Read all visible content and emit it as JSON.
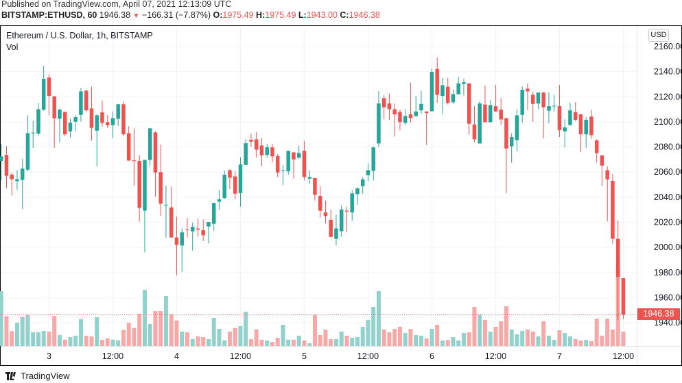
{
  "published": "Published on TradingView.com, April 07, 2021 12:13:09 UTC",
  "symbol_line": {
    "symbol": "BITSTAMP:ETHUSD, 60",
    "last": "1946.38",
    "change": "−166.31 (−7.87%)",
    "o_label": "O:",
    "o": "1975.49",
    "h_label": "H:",
    "h": "1975.49",
    "l_label": "L:",
    "l": "1943.00",
    "c_label": "C:",
    "c": "1946.38",
    "direction_icon": "triangle-down-icon"
  },
  "legend": {
    "title": "Ethereum / U.S. Dollar, 1h, BITSTAMP",
    "vol": "Vol"
  },
  "currency_button": "USD",
  "last_price_tag": "1946.38",
  "brand": "TradingView",
  "colors": {
    "up": "#26a69a",
    "down": "#ef5350",
    "vol_up": "#92d2cc",
    "vol_down": "#f7a9a7",
    "grid": "#f0f3fa"
  },
  "chart_data": {
    "type": "candlestick",
    "interval": "1h",
    "y_ticks": [
      "2160.00",
      "2140.00",
      "2120.00",
      "2100.00",
      "2080.00",
      "2060.00",
      "2040.00",
      "2020.00",
      "2000.00",
      "1980.00",
      "1960.00",
      "1940.00"
    ],
    "x_ticks": [
      {
        "label": "3",
        "time": "04-03 00:00"
      },
      {
        "label": "12:00",
        "time": "04-03 12:00"
      },
      {
        "label": "4",
        "time": "04-04 00:00"
      },
      {
        "label": "12:00",
        "time": "04-04 12:00"
      },
      {
        "label": "5",
        "time": "04-05 00:00"
      },
      {
        "label": "12:00",
        "time": "04-05 12:00"
      },
      {
        "label": "6",
        "time": "04-06 00:00"
      },
      {
        "label": "12:00",
        "time": "04-06 12:00"
      },
      {
        "label": "7",
        "time": "04-07 00:00"
      },
      {
        "label": "12:00",
        "time": "04-07 12:00"
      }
    ],
    "last_price": 1946.38,
    "columns": [
      "time",
      "open",
      "high",
      "low",
      "close",
      "volume_relative"
    ],
    "candles": [
      [
        "04-02 15:00",
        2068.8,
        2082.5,
        2053.4,
        2072.5,
        240
      ],
      [
        "04-02 16:00",
        2073.7,
        2080.7,
        2047,
        2057,
        130
      ],
      [
        "04-02 17:00",
        2058,
        2059.2,
        2041.5,
        2054.3,
        65
      ],
      [
        "04-02 18:00",
        2052.8,
        2061.5,
        2046,
        2054.3,
        102
      ],
      [
        "04-02 19:00",
        2053.7,
        2070.6,
        2030.6,
        2062.8,
        128
      ],
      [
        "04-02 20:00",
        2061.9,
        2105.2,
        2060.6,
        2091,
        137
      ],
      [
        "04-02 21:00",
        2091,
        2101,
        2079.2,
        2091.4,
        60
      ],
      [
        "04-02 22:00",
        2090.7,
        2115.2,
        2088.9,
        2110.1,
        60
      ],
      [
        "04-02 23:00",
        2109.8,
        2144.7,
        2108.9,
        2134.3,
        66
      ],
      [
        "04-03 00:00",
        2135.3,
        2138,
        2105.2,
        2120.7,
        63
      ],
      [
        "04-03 01:00",
        2120.3,
        2120.7,
        2079.2,
        2102.9,
        132
      ],
      [
        "04-03 02:00",
        2102.5,
        2110.7,
        2083.8,
        2109.8,
        48
      ],
      [
        "04-03 03:00",
        2108,
        2108,
        2088.9,
        2090.1,
        28
      ],
      [
        "04-03 04:00",
        2092.5,
        2102.5,
        2087.6,
        2099.4,
        39
      ],
      [
        "04-03 05:00",
        2100.1,
        2105.2,
        2092.5,
        2103.8,
        45
      ],
      [
        "04-03 06:00",
        2105.6,
        2127.1,
        2100.3,
        2124.3,
        118
      ],
      [
        "04-03 07:00",
        2124.9,
        2125.6,
        2108,
        2109.2,
        45
      ],
      [
        "04-03 08:00",
        2110.7,
        2128,
        2085.2,
        2095.2,
        42
      ],
      [
        "04-03 09:00",
        2093,
        2106.1,
        2064.6,
        2105.2,
        126
      ],
      [
        "04-03 10:00",
        2107.6,
        2117,
        2096.1,
        2099.2,
        27
      ],
      [
        "04-03 11:00",
        2099.8,
        2105.2,
        2095.2,
        2097.4,
        33
      ],
      [
        "04-03 12:00",
        2097.4,
        2108.3,
        2087,
        2103,
        28
      ],
      [
        "04-03 13:00",
        2102.5,
        2114.3,
        2096.7,
        2114,
        25
      ],
      [
        "04-03 14:00",
        2114,
        2116.2,
        2088.9,
        2090.1,
        70
      ],
      [
        "04-03 15:00",
        2091,
        2096.5,
        2068.8,
        2069.2,
        102
      ],
      [
        "04-03 16:00",
        2069.4,
        2094.7,
        2049.2,
        2068.7,
        79
      ],
      [
        "04-03 17:00",
        2068.8,
        2073.4,
        2020.6,
        2031.5,
        141
      ],
      [
        "04-03 18:00",
        2029.3,
        2069.7,
        1996,
        2069.7,
        246
      ],
      [
        "04-03 19:00",
        2069.7,
        2094.9,
        2065.2,
        2094.9,
        96
      ],
      [
        "04-03 20:00",
        2091.6,
        2092.5,
        2040.3,
        2059.7,
        153
      ],
      [
        "04-03 21:00",
        2060,
        2081.9,
        2025.2,
        2034.8,
        153
      ],
      [
        "04-03 22:00",
        2033.7,
        2049.2,
        2007.5,
        2034,
        219
      ],
      [
        "04-03 23:00",
        2031.9,
        2048.3,
        2007.5,
        2007.9,
        139
      ],
      [
        "04-04 00:00",
        2007.9,
        2024.8,
        1977.8,
        2002,
        112
      ],
      [
        "04-04 01:00",
        2001.5,
        2015.1,
        1980.6,
        2012,
        63
      ],
      [
        "04-04 02:00",
        2014.2,
        2023.7,
        2007.9,
        2013.7,
        60
      ],
      [
        "04-04 03:00",
        2012.8,
        2019.7,
        1997.5,
        2016.4,
        30
      ],
      [
        "04-04 04:00",
        2015.1,
        2023,
        2008.4,
        2014.2,
        42
      ],
      [
        "04-04 05:00",
        2013.7,
        2022.4,
        2005.1,
        2009.7,
        39
      ],
      [
        "04-04 06:00",
        2016.6,
        2020.2,
        2003.3,
        2020.2,
        30
      ],
      [
        "04-04 07:00",
        2018.8,
        2035.5,
        2013.3,
        2035.5,
        123
      ],
      [
        "04-04 08:00",
        2036.4,
        2045.7,
        2030.2,
        2038.3,
        75
      ],
      [
        "04-04 09:00",
        2039.3,
        2061,
        2038.8,
        2057.9,
        25
      ],
      [
        "04-04 10:00",
        2061.5,
        2062.5,
        2046.4,
        2055.5,
        63
      ],
      [
        "04-04 11:00",
        2056.6,
        2060.6,
        2038.3,
        2042.8,
        79
      ],
      [
        "04-04 12:00",
        2043.3,
        2071.9,
        2032.4,
        2066.1,
        87
      ],
      [
        "04-04 13:00",
        2065.7,
        2086.1,
        2065.7,
        2083,
        150
      ],
      [
        "04-04 14:00",
        2085.8,
        2090.7,
        2080.3,
        2084.3,
        30
      ],
      [
        "04-04 15:00",
        2086.1,
        2092.1,
        2071.6,
        2077.9,
        73
      ],
      [
        "04-04 16:00",
        2081.2,
        2087,
        2064.6,
        2073.4,
        28
      ],
      [
        "04-04 17:00",
        2073.7,
        2082.5,
        2071.6,
        2079.7,
        24
      ],
      [
        "04-04 18:00",
        2079.7,
        2082.5,
        2067.9,
        2072.5,
        18
      ],
      [
        "04-04 19:00",
        2072.8,
        2074.3,
        2056,
        2059.7,
        36
      ],
      [
        "04-04 20:00",
        2061,
        2065.6,
        2049.7,
        2061.5,
        93
      ],
      [
        "04-04 21:00",
        2060.6,
        2077,
        2057.9,
        2077,
        28
      ],
      [
        "04-04 22:00",
        2075.7,
        2076.1,
        2054.8,
        2070.1,
        28
      ],
      [
        "04-04 23:00",
        2071.6,
        2081,
        2070.6,
        2075.2,
        45
      ],
      [
        "04-05 00:00",
        2077,
        2084.8,
        2053.4,
        2056.1,
        24
      ],
      [
        "04-05 01:00",
        2054.8,
        2061.5,
        2050.6,
        2056.1,
        12
      ],
      [
        "04-05 02:00",
        2055.2,
        2055.2,
        2037.3,
        2041.9,
        137
      ],
      [
        "04-05 03:00",
        2041,
        2048.8,
        2023.7,
        2029.2,
        48
      ],
      [
        "04-05 04:00",
        2027.9,
        2037.3,
        2019.1,
        2025.1,
        72
      ],
      [
        "04-05 05:00",
        2022,
        2030.1,
        2007.8,
        2008.4,
        30
      ],
      [
        "04-05 06:00",
        2006.9,
        2026,
        2001.8,
        2015.1,
        30
      ],
      [
        "04-05 07:00",
        2012.9,
        2033.3,
        2008.8,
        2030.2,
        63
      ],
      [
        "04-05 08:00",
        2029.3,
        2032.4,
        2012,
        2028.6,
        45
      ],
      [
        "04-05 09:00",
        2027.9,
        2045.5,
        2021.1,
        2043,
        36
      ],
      [
        "04-05 10:00",
        2042.4,
        2047.9,
        2033.9,
        2047,
        39
      ],
      [
        "04-05 11:00",
        2048.8,
        2056.1,
        2042.8,
        2054.2,
        84
      ],
      [
        "04-05 12:00",
        2057.5,
        2067,
        2052.8,
        2061.5,
        114
      ],
      [
        "04-05 13:00",
        2061,
        2080.6,
        2053.4,
        2079.7,
        171
      ],
      [
        "04-05 14:00",
        2082.8,
        2124.7,
        2079.7,
        2114.7,
        240
      ],
      [
        "04-05 15:00",
        2118.9,
        2121.6,
        2102.1,
        2111.6,
        72
      ],
      [
        "04-05 16:00",
        2114.7,
        2122.5,
        2101.6,
        2110.1,
        60
      ],
      [
        "04-05 17:00",
        2110.1,
        2114.7,
        2088.3,
        2106.1,
        75
      ],
      [
        "04-05 18:00",
        2107.9,
        2109.8,
        2093.4,
        2099.8,
        84
      ],
      [
        "04-05 19:00",
        2099.2,
        2110.1,
        2097.4,
        2104.7,
        57
      ],
      [
        "04-05 20:00",
        2106.1,
        2131.2,
        2099.4,
        2103,
        75
      ],
      [
        "04-05 21:00",
        2104.7,
        2120.7,
        2103.9,
        2108.3,
        48
      ],
      [
        "04-05 22:00",
        2109.2,
        2124.7,
        2106.5,
        2114.3,
        45
      ],
      [
        "04-05 23:00",
        2108.3,
        2108.3,
        2081.6,
        2107,
        33
      ],
      [
        "04-06 00:00",
        2108.5,
        2142.5,
        2108,
        2139.8,
        75
      ],
      [
        "04-06 01:00",
        2142.2,
        2151.3,
        2115.2,
        2121.6,
        93
      ],
      [
        "04-06 02:00",
        2120.7,
        2135.2,
        2106.1,
        2129.2,
        24
      ],
      [
        "04-06 03:00",
        2128,
        2135.2,
        2113.8,
        2115.2,
        27
      ],
      [
        "04-06 04:00",
        2115.6,
        2125.8,
        2114.3,
        2122.1,
        39
      ],
      [
        "04-06 05:00",
        2122.1,
        2135.6,
        2121.6,
        2130.7,
        24
      ],
      [
        "04-06 06:00",
        2130.3,
        2134.3,
        2121,
        2131.6,
        57
      ],
      [
        "04-06 07:00",
        2130.7,
        2130.7,
        2089.7,
        2098.5,
        60
      ],
      [
        "04-06 08:00",
        2097.9,
        2112.5,
        2083.9,
        2086.1,
        171
      ],
      [
        "04-06 09:00",
        2082.8,
        2116.5,
        2082.5,
        2114.7,
        137
      ],
      [
        "04-06 10:00",
        2113.8,
        2128.9,
        2099.2,
        2099.8,
        114
      ],
      [
        "04-06 11:00",
        2099.8,
        2117.4,
        2099.4,
        2113.4,
        63
      ],
      [
        "04-06 12:00",
        2112.5,
        2129.4,
        2108,
        2108.3,
        84
      ],
      [
        "04-06 13:00",
        2109.8,
        2118.9,
        2097.9,
        2101.9,
        108
      ],
      [
        "04-06 14:00",
        2103,
        2103.4,
        2043.3,
        2078.8,
        174
      ],
      [
        "04-06 15:00",
        2080.6,
        2091,
        2067.5,
        2087.9,
        72
      ],
      [
        "04-06 16:00",
        2085.5,
        2110.1,
        2076.6,
        2105.2,
        51
      ],
      [
        "04-06 17:00",
        2105.6,
        2128.3,
        2099.4,
        2125.6,
        66
      ],
      [
        "04-06 18:00",
        2126.5,
        2130.7,
        2109.4,
        2124.3,
        72
      ],
      [
        "04-06 19:00",
        2121.6,
        2124,
        2100.1,
        2114.3,
        63
      ],
      [
        "04-06 20:00",
        2114.7,
        2123.4,
        2110.1,
        2123.4,
        42
      ],
      [
        "04-06 21:00",
        2123.4,
        2124,
        2087,
        2111.6,
        108
      ],
      [
        "04-06 22:00",
        2108.9,
        2123.4,
        2098.9,
        2112.5,
        45
      ],
      [
        "04-06 23:00",
        2112.3,
        2121.6,
        2108.3,
        2112.9,
        27
      ],
      [
        "04-07 00:00",
        2112.5,
        2129.4,
        2087.9,
        2093.4,
        69
      ],
      [
        "04-07 01:00",
        2092.5,
        2102.1,
        2079.7,
        2095.6,
        57
      ],
      [
        "04-07 02:00",
        2097.6,
        2115.2,
        2097,
        2109.2,
        42
      ],
      [
        "04-07 03:00",
        2107.9,
        2115.8,
        2100.7,
        2101.6,
        30
      ],
      [
        "04-07 04:00",
        2106.1,
        2106.1,
        2076,
        2090.1,
        24
      ],
      [
        "04-07 05:00",
        2090.1,
        2104,
        2079.4,
        2101.6,
        27
      ],
      [
        "04-07 06:00",
        2104.3,
        2109.8,
        2086.5,
        2089.4,
        21
      ],
      [
        "04-07 07:00",
        2085.2,
        2086.1,
        2067.5,
        2075.2,
        120
      ],
      [
        "04-07 08:00",
        2073.4,
        2073.4,
        2048.8,
        2065.2,
        45
      ],
      [
        "04-07 09:00",
        2061.5,
        2064.6,
        2020.9,
        2054.2,
        120
      ],
      [
        "04-07 10:00",
        2053,
        2058.4,
        2002.8,
        2006.9,
        72
      ],
      [
        "04-07 11:00",
        2006.9,
        2021.5,
        1942.3,
        1976.5,
        351
      ],
      [
        "04-07 12:00",
        1975.49,
        1975.49,
        1943,
        1946.38,
        63
      ]
    ]
  }
}
